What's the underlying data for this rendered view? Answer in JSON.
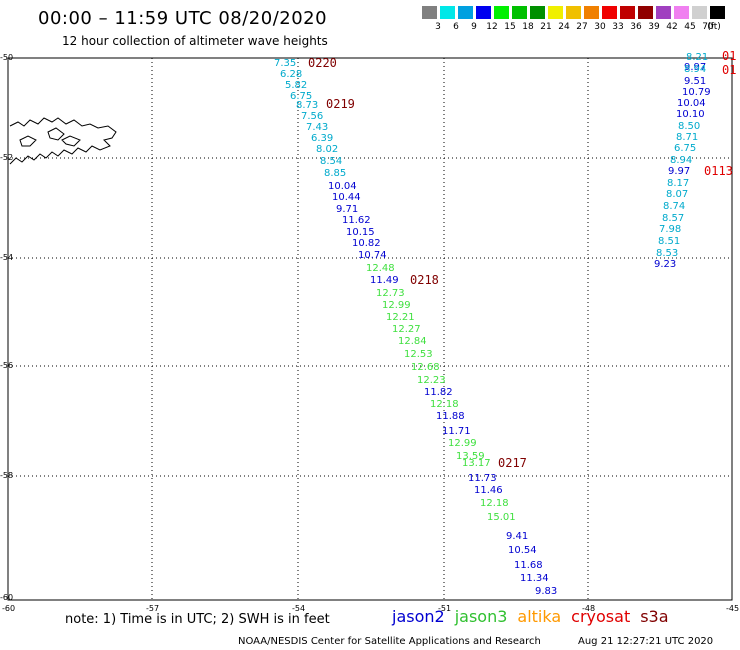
{
  "header": {
    "title": "00:00 – 11:59 UTC 08/20/2020",
    "subtitle": "12 hour collection of altimeter wave heights"
  },
  "colorbar": {
    "unit": "(ft)",
    "bins": [
      {
        "color": "#808080",
        "label": "3"
      },
      {
        "color": "#00e8e8",
        "label": "6"
      },
      {
        "color": "#00a0e0",
        "label": "9"
      },
      {
        "color": "#0000f0",
        "label": "12"
      },
      {
        "color": "#00f000",
        "label": "15"
      },
      {
        "color": "#00c000",
        "label": "18"
      },
      {
        "color": "#009000",
        "label": "21"
      },
      {
        "color": "#f0f000",
        "label": "24"
      },
      {
        "color": "#f0c000",
        "label": "27"
      },
      {
        "color": "#f08000",
        "label": "30"
      },
      {
        "color": "#f00000",
        "label": "33"
      },
      {
        "color": "#c00000",
        "label": "36"
      },
      {
        "color": "#900000",
        "label": "39"
      },
      {
        "color": "#a040c0",
        "label": "42"
      },
      {
        "color": "#f080f0",
        "label": "45"
      },
      {
        "color": "#d0d0d0",
        "label": "70"
      },
      {
        "color": "#000000",
        "label": ""
      }
    ]
  },
  "map": {
    "lon_ticks": [
      "-60",
      "-57",
      "-54",
      "-51",
      "-48",
      "-45"
    ],
    "lat_ticks": [
      "-50",
      "-52",
      "-54",
      "-56",
      "-58",
      "-60"
    ],
    "colors": {
      "jason2": "#0000d0",
      "jason3": "#40e040",
      "altika": "#ff9900",
      "cryosat": "#e00000",
      "s3a": "#800000",
      "cyan": "#00aacc"
    }
  },
  "tracks": [
    {
      "name": "pass-0220",
      "color": "#800000",
      "label": "0220"
    },
    {
      "name": "pass-0219",
      "color": "#800000",
      "label": "0219"
    },
    {
      "name": "pass-0218",
      "color": "#800000",
      "label": "0218"
    },
    {
      "name": "pass-0217",
      "color": "#800000",
      "label": "0217"
    },
    {
      "name": "pass-0113",
      "color": "#e00000",
      "label": "0113"
    },
    {
      "name": "pass-01a",
      "color": "#e00000",
      "label": "01"
    },
    {
      "name": "pass-01b",
      "color": "#e00000",
      "label": "01"
    }
  ],
  "points": [
    {
      "v": "7.35",
      "c": "cyan"
    },
    {
      "v": "6.28",
      "c": "cyan"
    },
    {
      "v": "5.82",
      "c": "cyan"
    },
    {
      "v": "6.75",
      "c": "cyan"
    },
    {
      "v": "8.73",
      "c": "cyan"
    },
    {
      "v": "7.56",
      "c": "cyan"
    },
    {
      "v": "7.43",
      "c": "cyan"
    },
    {
      "v": "6.39",
      "c": "cyan"
    },
    {
      "v": "8.02",
      "c": "cyan"
    },
    {
      "v": "8.54",
      "c": "cyan"
    },
    {
      "v": "8.85",
      "c": "cyan"
    },
    {
      "v": "10.04",
      "c": "jason2"
    },
    {
      "v": "10.44",
      "c": "jason2"
    },
    {
      "v": "9.71",
      "c": "jason2"
    },
    {
      "v": "11.62",
      "c": "jason2"
    },
    {
      "v": "10.15",
      "c": "jason2"
    },
    {
      "v": "10.82",
      "c": "jason2"
    },
    {
      "v": "10.74",
      "c": "jason2"
    },
    {
      "v": "12.48",
      "c": "jason3"
    },
    {
      "v": "11.49",
      "c": "jason2"
    },
    {
      "v": "12.73",
      "c": "jason3"
    },
    {
      "v": "12.99",
      "c": "jason3"
    },
    {
      "v": "12.21",
      "c": "jason3"
    },
    {
      "v": "12.27",
      "c": "jason3"
    },
    {
      "v": "12.84",
      "c": "jason3"
    },
    {
      "v": "12.53",
      "c": "jason3"
    },
    {
      "v": "12.68",
      "c": "jason3"
    },
    {
      "v": "12.23",
      "c": "jason3"
    },
    {
      "v": "11.82",
      "c": "jason2"
    },
    {
      "v": "12.18",
      "c": "jason3"
    },
    {
      "v": "11.88",
      "c": "jason2"
    },
    {
      "v": "11.71",
      "c": "jason2"
    },
    {
      "v": "12.99",
      "c": "jason3"
    },
    {
      "v": "13.59",
      "c": "jason3"
    },
    {
      "v": "13.17",
      "c": "jason3"
    },
    {
      "v": "11.73",
      "c": "jason2"
    },
    {
      "v": "11.46",
      "c": "jason2"
    },
    {
      "v": "12.18",
      "c": "jason3"
    },
    {
      "v": "15.01",
      "c": "jason3"
    },
    {
      "v": "9.41",
      "c": "jason2"
    },
    {
      "v": "10.54",
      "c": "jason2"
    },
    {
      "v": "11.68",
      "c": "jason2"
    },
    {
      "v": "11.34",
      "c": "jason2"
    },
    {
      "v": "9.83",
      "c": "jason2"
    },
    {
      "v": "8.21",
      "c": "cyan"
    },
    {
      "v": "9.97",
      "c": "jason2"
    },
    {
      "v": "8.94",
      "c": "cyan"
    },
    {
      "v": "9.51",
      "c": "jason2"
    },
    {
      "v": "10.79",
      "c": "jason2"
    },
    {
      "v": "10.04",
      "c": "jason2"
    },
    {
      "v": "10.10",
      "c": "jason2"
    },
    {
      "v": "8.50",
      "c": "cyan"
    },
    {
      "v": "8.71",
      "c": "cyan"
    },
    {
      "v": "6.75",
      "c": "cyan"
    },
    {
      "v": "8.94",
      "c": "cyan"
    },
    {
      "v": "9.97",
      "c": "jason2"
    },
    {
      "v": "8.17",
      "c": "cyan"
    },
    {
      "v": "8.07",
      "c": "cyan"
    },
    {
      "v": "8.74",
      "c": "cyan"
    },
    {
      "v": "8.57",
      "c": "cyan"
    },
    {
      "v": "7.98",
      "c": "cyan"
    },
    {
      "v": "8.51",
      "c": "cyan"
    },
    {
      "v": "8.53",
      "c": "cyan"
    },
    {
      "v": "9.23",
      "c": "jason2"
    }
  ],
  "footer": {
    "note": "note:  1) Time is in UTC;  2) SWH is in feet",
    "legend": [
      {
        "label": "jason2",
        "color": "#0000d0"
      },
      {
        "label": "jason3",
        "color": "#30c030"
      },
      {
        "label": "altika",
        "color": "#ff9900"
      },
      {
        "label": "cryosat",
        "color": "#e00000"
      },
      {
        "label": "s3a",
        "color": "#800000"
      }
    ],
    "credit": "NOAA/NESDIS Center for Satellite Applications and Research",
    "timestamp": "Aug 21 12:27:21 UTC 2020"
  }
}
